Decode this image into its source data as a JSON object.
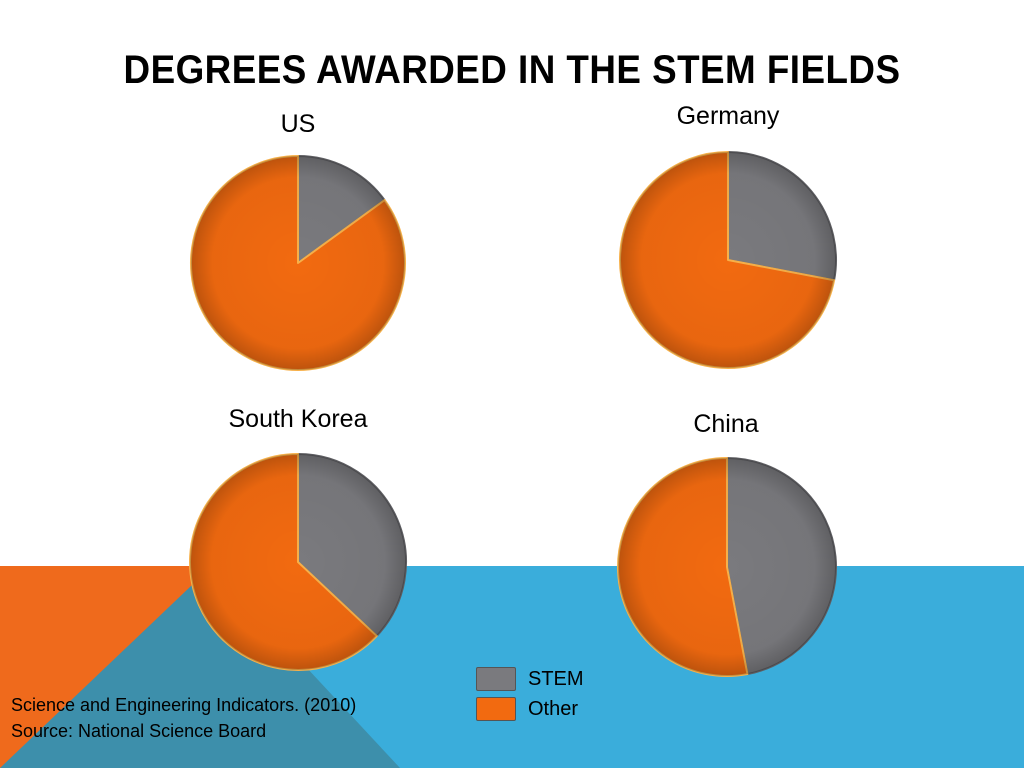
{
  "slide": {
    "title": "DEGREES AWARDED IN THE STEM FIELDS",
    "citation_line1": "Science and Engineering Indicators. (2010)",
    "citation_line2": "Source:  National Science Board"
  },
  "colors": {
    "stem": "#7a7a7e",
    "other": "#f26a10",
    "band_orange": "#ef6a1c",
    "band_blue": "#3aaddb",
    "band_teal": "#3d8fab"
  },
  "legend": [
    {
      "label": "STEM",
      "color_key": "stem"
    },
    {
      "label": "Other",
      "color_key": "other"
    }
  ],
  "chart_data": [
    {
      "type": "pie",
      "title": "US",
      "categories": [
        "STEM",
        "Other"
      ],
      "values": [
        15,
        85
      ]
    },
    {
      "type": "pie",
      "title": "Germany",
      "categories": [
        "STEM",
        "Other"
      ],
      "values": [
        28,
        72
      ]
    },
    {
      "type": "pie",
      "title": "South Korea",
      "categories": [
        "STEM",
        "Other"
      ],
      "values": [
        37,
        63
      ]
    },
    {
      "type": "pie",
      "title": "China",
      "categories": [
        "STEM",
        "Other"
      ],
      "values": [
        47,
        53
      ]
    }
  ]
}
